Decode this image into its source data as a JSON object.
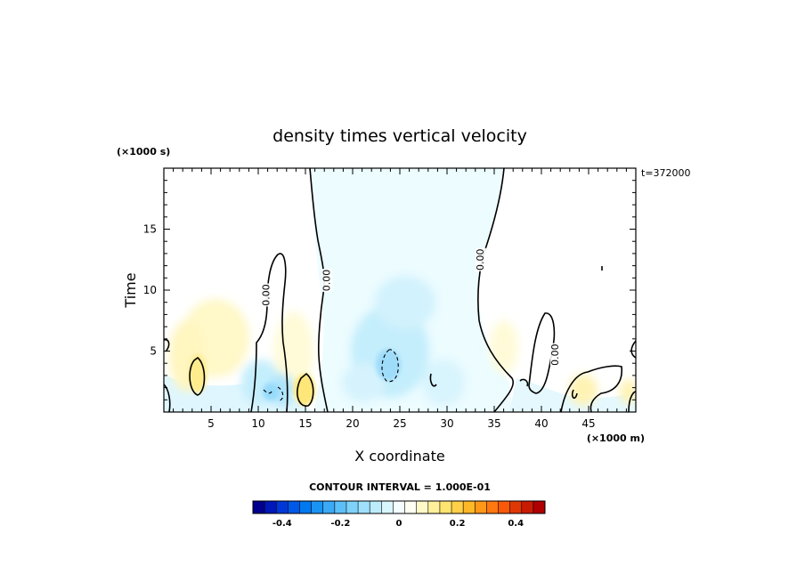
{
  "chart_data": {
    "type": "heatmap",
    "title": "density times vertical velocity",
    "xlabel": "X coordinate",
    "ylabel": "Time",
    "x_units": "(×1000 m)",
    "y_units": "(×1000 s)",
    "time_stamp": "t=372000",
    "xlim": [
      0,
      50
    ],
    "ylim": [
      0,
      20
    ],
    "x_ticks": [
      5,
      10,
      15,
      20,
      25,
      30,
      35,
      40,
      45
    ],
    "y_ticks": [
      5,
      10,
      15
    ],
    "contour_interval_text": "CONTOUR INTERVAL = 1.000E-01",
    "contour_labels": [
      {
        "text": "0.00",
        "x": 10.9,
        "y": 9.6
      },
      {
        "text": "0.00",
        "x": 17.3,
        "y": 10.8
      },
      {
        "text": "0.00",
        "x": 33.6,
        "y": 12.5
      },
      {
        "text": "0.00",
        "x": 41.5,
        "y": 4.7
      }
    ],
    "colorbar": {
      "range": [
        -0.5,
        0.5
      ],
      "tick_values": [
        -0.4,
        -0.2,
        0,
        0.2,
        0.4
      ],
      "tick_labels": [
        "-0.4",
        "-0.2",
        "0",
        "0.2",
        "0.4"
      ],
      "colors": [
        "#00008c",
        "#0018b8",
        "#0038d8",
        "#0058e8",
        "#0078f0",
        "#1a94f4",
        "#3aaaf6",
        "#5cc0f8",
        "#7ed2fa",
        "#9ee0fb",
        "#bcecfc",
        "#d8f6fe",
        "#f4fdff",
        "#fffff4",
        "#fff8c8",
        "#fff09c",
        "#ffe470",
        "#ffd048",
        "#ffb828",
        "#ff9818",
        "#ff7810",
        "#f85808",
        "#e03804",
        "#c81c02",
        "#b00000"
      ]
    },
    "field_features": [
      {
        "type": "updraft",
        "x": 3.5,
        "y": 3.2,
        "value": 0.15
      },
      {
        "type": "updraft",
        "x": 14.8,
        "y": 1.6,
        "value": 0.15
      },
      {
        "type": "updraft",
        "x": 6,
        "y": 6,
        "value": 0.05
      },
      {
        "type": "downdraft",
        "x": 24,
        "y": 4,
        "value": -0.1
      },
      {
        "type": "downdraft",
        "x": 12,
        "y": 1.8,
        "value": -0.1
      },
      {
        "type": "downdraft",
        "x": 25.5,
        "y": 9.5,
        "value": -0.05
      },
      {
        "type": "downdraft",
        "x": 27,
        "y": 14,
        "value": -0.02
      }
    ]
  }
}
